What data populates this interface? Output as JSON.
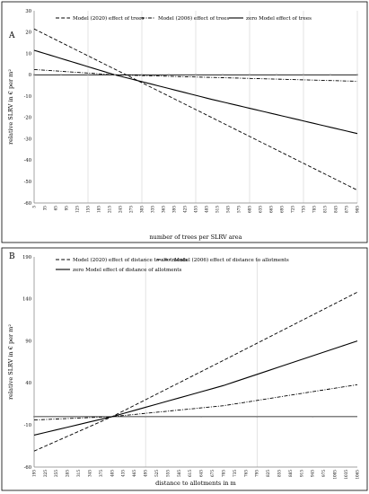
{
  "chart_data": [
    {
      "panel": "A",
      "type": "line",
      "xlabel": "number of trees per SLRV area",
      "ylabel": "relative SLRV in € per m²",
      "ylim": [
        -60,
        30
      ],
      "yticks": [
        -60,
        -50,
        -40,
        -30,
        -20,
        -10,
        0,
        10,
        20,
        30
      ],
      "x_range": [
        5,
        905
      ],
      "x_step": 15,
      "grid": "vertical",
      "legend": "top",
      "series": [
        {
          "name": "Model (2020) effect of trees",
          "style": "dashed",
          "color": "#000000",
          "x": [
            5,
            905
          ],
          "y": [
            21.5,
            -54
          ]
        },
        {
          "name": "Model (2006) effect of trees",
          "style": "dash-dot",
          "color": "#000000",
          "x": [
            5,
            230,
            905
          ],
          "y": [
            2.5,
            0,
            -3
          ]
        },
        {
          "name": "zero Model effect of trees",
          "style": "solid",
          "color": "#000000",
          "x": [
            5,
            230,
            500,
            905
          ],
          "y": [
            11.5,
            0,
            -11.5,
            -27.5
          ]
        },
        {
          "name": "",
          "style": "solid-markers",
          "color": "#000000",
          "x": [
            5,
            905
          ],
          "y": [
            0,
            0
          ]
        }
      ]
    },
    {
      "panel": "B",
      "type": "line",
      "xlabel": "distance to allotments in m",
      "ylabel": "relative SLRV in € per m²",
      "ylim": [
        -60,
        190
      ],
      "yticks": [
        -60,
        -10,
        40,
        90,
        140,
        190
      ],
      "x_range": [
        195,
        1065
      ],
      "x_step": 30,
      "grid": "vertical",
      "legend": "top",
      "series": [
        {
          "name": "Model (2020) effect of distance to allotments",
          "style": "dashed",
          "color": "#000000",
          "x": [
            195,
            405,
            705,
            1065
          ],
          "y": [
            -41,
            0,
            67,
            148
          ]
        },
        {
          "name": "Model (2006) effect of distance to allotments",
          "style": "dash-dot",
          "color": "#000000",
          "x": [
            195,
            405,
            705,
            1065
          ],
          "y": [
            -4,
            0,
            13,
            38
          ]
        },
        {
          "name": "zero Model effect of distance of allotments",
          "style": "solid",
          "color": "#000000",
          "x": [
            195,
            405,
            705,
            1065
          ],
          "y": [
            -22,
            0,
            37,
            90
          ]
        },
        {
          "name": "",
          "style": "solid-markers",
          "color": "#000000",
          "x": [
            195,
            1065
          ],
          "y": [
            0,
            0
          ]
        }
      ]
    }
  ]
}
